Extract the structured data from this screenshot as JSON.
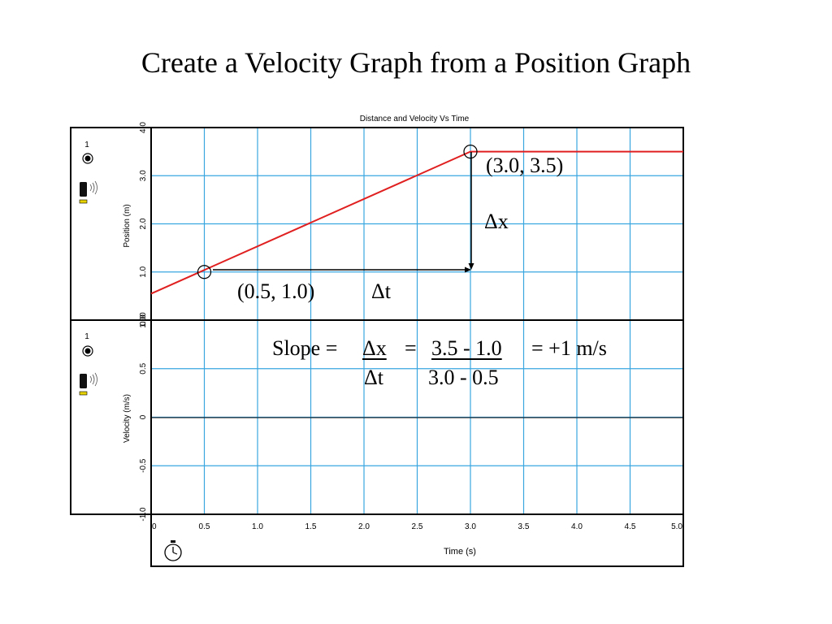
{
  "slide": {
    "title": "Create a Velocity Graph from a Position Graph"
  },
  "graph": {
    "title": "Distance and Velocity Vs Time",
    "position_panel": {
      "sensor_number": "1",
      "ylabel": "Position (m)",
      "yticks": [
        "0.0",
        "1.0",
        "2.0",
        "3.0",
        "4.0"
      ]
    },
    "velocity_panel": {
      "sensor_number": "1",
      "ylabel": "Velocity (m/s)",
      "yticks": [
        "-1.0",
        "-0.5",
        "0",
        "0.5",
        "1.00"
      ]
    },
    "x_axis": {
      "label": "Time (s)",
      "ticks": [
        "0",
        "0.5",
        "1.0",
        "1.5",
        "2.0",
        "2.5",
        "3.0",
        "3.5",
        "4.0",
        "4.5",
        "5.0"
      ]
    },
    "colors": {
      "grid": "#3aa6e0",
      "series": "#e02020",
      "arrow": "#000000"
    }
  },
  "annotations": {
    "point_b": "(3.0, 3.5)",
    "point_a": "(0.5, 1.0)",
    "delta_x": "Δx",
    "delta_t": "Δt",
    "slope_label": "Slope =",
    "slope_dx": "Δx",
    "slope_eq1": "=",
    "slope_numerator": "3.5 - 1.0",
    "slope_result": "= +1 m/s",
    "slope_dt": "Δt",
    "slope_denominator": "3.0 - 0.5"
  },
  "chart_data": [
    {
      "type": "line",
      "name": "position",
      "title": "Distance and Velocity Vs Time",
      "xlabel": "Time (s)",
      "ylabel": "Position (m)",
      "xlim": [
        0,
        5.0
      ],
      "ylim": [
        0,
        4.0
      ],
      "grid": true,
      "series": [
        {
          "x": [
            0,
            3.0,
            5.0
          ],
          "y": [
            0.55,
            3.5,
            3.5
          ]
        }
      ],
      "markers": [
        {
          "x": 0.5,
          "y": 1.0
        },
        {
          "x": 3.0,
          "y": 3.5
        }
      ]
    },
    {
      "type": "line",
      "name": "velocity",
      "xlabel": "Time (s)",
      "ylabel": "Velocity (m/s)",
      "xlim": [
        0,
        5.0
      ],
      "ylim": [
        -1.0,
        1.0
      ],
      "grid": true,
      "series": []
    }
  ]
}
